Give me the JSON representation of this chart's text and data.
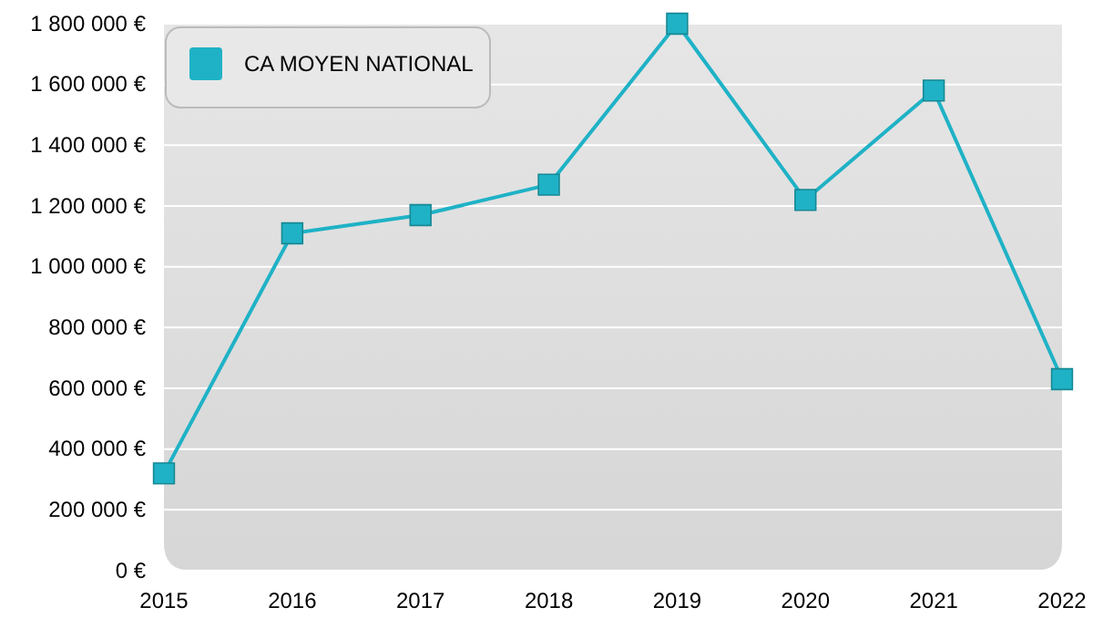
{
  "chart_data": {
    "type": "line",
    "x": [
      2015,
      2016,
      2017,
      2018,
      2019,
      2020,
      2021,
      2022
    ],
    "series": [
      {
        "name": "CA MOYEN NATIONAL",
        "color": "#1fb2c6",
        "values": [
          320000,
          1110000,
          1170000,
          1270000,
          1800000,
          1220000,
          1580000,
          630000
        ]
      }
    ],
    "xlim": [
      2015,
      2022
    ],
    "xticks": [
      2015,
      2016,
      2017,
      2018,
      2019,
      2020,
      2021,
      2022
    ],
    "ylim": [
      0,
      1800000
    ],
    "yticks": [
      {
        "value": 0,
        "label": "0 €"
      },
      {
        "value": 200000,
        "label": "200 000 €"
      },
      {
        "value": 400000,
        "label": "400 000 €"
      },
      {
        "value": 600000,
        "label": "600 000 €"
      },
      {
        "value": 800000,
        "label": "800 000 €"
      },
      {
        "value": 1000000,
        "label": "1 000 000 €"
      },
      {
        "value": 1200000,
        "label": "1 200 000 €"
      },
      {
        "value": 1400000,
        "label": "1 400 000 €"
      },
      {
        "value": 1600000,
        "label": "1 600 000 €"
      },
      {
        "value": 1800000,
        "label": "1 800 000 €"
      }
    ],
    "grid": "y",
    "legend": "top left",
    "marker": "square",
    "line_style": "solid"
  }
}
